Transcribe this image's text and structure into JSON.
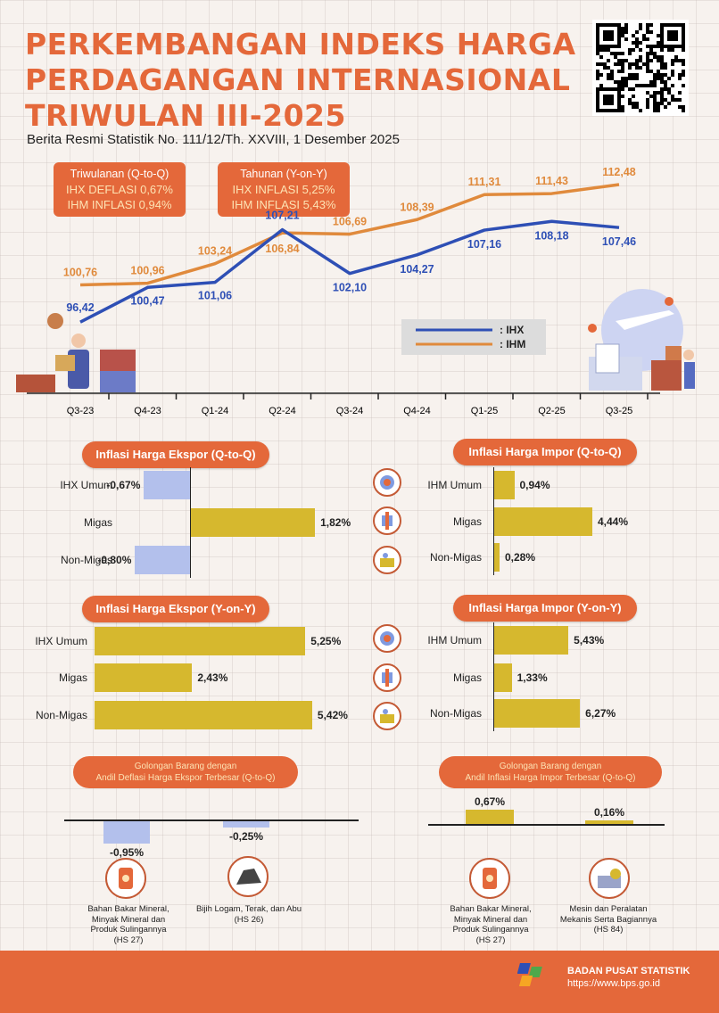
{
  "header": {
    "title_lines": [
      "PERKEMBANGAN INDEKS HARGA",
      "PERDAGANGAN INTERNASIONAL",
      "TRIWULAN III-2025"
    ],
    "subtitle": "Berita Resmi Statistik No. 111/12/Th. XXVIII, 1 Desember 2025"
  },
  "summary": {
    "qtoq": {
      "heading": "Triwulanan (Q-to-Q)",
      "line1": "IHX DEFLASI 0,67%",
      "line2": "IHM INFLASI 0,94%"
    },
    "yony": {
      "heading": "Tahunan (Y-on-Y)",
      "line1": "IHX INFLASI 5,25%",
      "line2": "IHM INFLASI 5,43%"
    }
  },
  "colors": {
    "accent": "#e4683a",
    "ihx": "#2e4fb5",
    "ihm": "#e08a3c",
    "bar_pos": "#d6b82e",
    "bar_neg": "#b3c0ec"
  },
  "chart_data": [
    {
      "type": "line",
      "categories": [
        "Q3-23",
        "Q4-23",
        "Q1-24",
        "Q2-24",
        "Q3-24",
        "Q4-24",
        "Q1-25",
        "Q2-25",
        "Q3-25"
      ],
      "series": [
        {
          "name": ": IHX",
          "values": [
            96.42,
            100.47,
            101.06,
            107.21,
            102.1,
            104.27,
            107.16,
            108.18,
            107.46
          ],
          "labels": [
            "96,42",
            "100,47",
            "101,06",
            "107,21",
            "102,10",
            "104,27",
            "107,16",
            "108,18",
            "107,46"
          ]
        },
        {
          "name": ": IHM",
          "values": [
            100.76,
            100.96,
            103.24,
            106.84,
            106.69,
            108.39,
            111.31,
            111.43,
            112.48
          ],
          "labels": [
            "100,76",
            "100,96",
            "103,24",
            "106,84",
            "106,69",
            "108,39",
            "111,31",
            "111,43",
            "112,48"
          ]
        }
      ],
      "legend": "right"
    },
    {
      "type": "bar",
      "title": "Inflasi Harga Ekspor (Q-to-Q)",
      "categories": [
        "IHX Umum",
        "Migas",
        "Non-Migas"
      ],
      "values": [
        -0.67,
        1.82,
        -0.8
      ],
      "labels": [
        "-0,67%",
        "1,82%",
        "-0,80%"
      ]
    },
    {
      "type": "bar",
      "title": "Inflasi Harga Impor (Q-to-Q)",
      "categories": [
        "IHM Umum",
        "Migas",
        "Non-Migas"
      ],
      "values": [
        0.94,
        4.44,
        0.28
      ],
      "labels": [
        "0,94%",
        "4,44%",
        "0,28%"
      ]
    },
    {
      "type": "bar",
      "title": "Inflasi Harga Ekspor (Y-on-Y)",
      "categories": [
        "IHX Umum",
        "Migas",
        "Non-Migas"
      ],
      "values": [
        5.25,
        2.43,
        5.42
      ],
      "labels": [
        "5,25%",
        "2,43%",
        "5,42%"
      ]
    },
    {
      "type": "bar",
      "title": "Inflasi Harga Impor (Y-on-Y)",
      "categories": [
        "IHM Umum",
        "Migas",
        "Non-Migas"
      ],
      "values": [
        5.43,
        1.33,
        6.27
      ],
      "labels": [
        "5,43%",
        "1,33%",
        "6,27%"
      ]
    },
    {
      "type": "bar",
      "title_lines": [
        "Golongan Barang dengan",
        "Andil Deflasi Harga Ekspor Terbesar (Q-to-Q)"
      ],
      "values": [
        -0.95,
        -0.25
      ],
      "labels": [
        "-0,95%",
        "-0,25%"
      ],
      "captions": [
        [
          "Bahan Bakar Mineral,",
          "Minyak Mineral dan",
          "Produk Sulingannya",
          "(HS 27)"
        ],
        [
          "Bijih Logam, Terak, dan Abu",
          "(HS 26)"
        ]
      ]
    },
    {
      "type": "bar",
      "title_lines": [
        "Golongan Barang dengan",
        "Andil Inflasi Harga Impor Terbesar (Q-to-Q)"
      ],
      "values": [
        0.67,
        0.16
      ],
      "labels": [
        "0,67%",
        "0,16%"
      ],
      "captions": [
        [
          "Bahan Bakar Mineral,",
          "Minyak Mineral dan",
          "Produk Sulingannya",
          "(HS 27)"
        ],
        [
          "Mesin dan Peralatan",
          "Mekanis Serta Bagiannya",
          "(HS 84)"
        ]
      ]
    }
  ],
  "footer": {
    "org": "BADAN PUSAT STATISTIK",
    "url": "https://www.bps.go.id"
  }
}
